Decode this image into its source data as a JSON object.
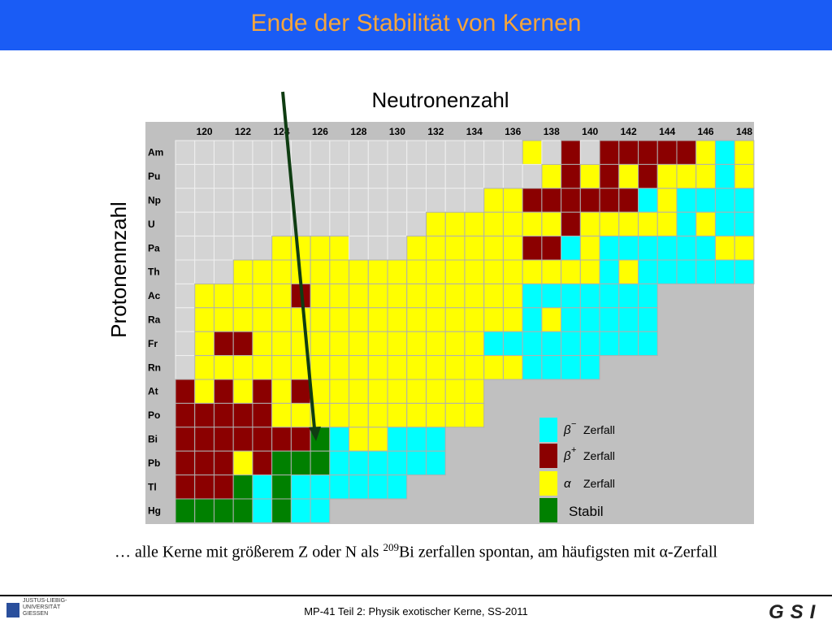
{
  "header": {
    "title": "Ende der Stabilität von Kernen"
  },
  "nuclide_chart": {
    "x_label": "Neutronenzahl",
    "y_label": "Protonennzahl",
    "neutron_labels": [
      120,
      122,
      124,
      126,
      128,
      130,
      132,
      134,
      136,
      138,
      140,
      142,
      144,
      146,
      148
    ],
    "proton_labels": [
      "Am",
      "Pu",
      "Np",
      "U",
      "Pa",
      "Th",
      "Ac",
      "Ra",
      "Fr",
      "Rn",
      "At",
      "Po",
      "Bi",
      "Pb",
      "Tl",
      "Hg"
    ],
    "legend": [
      {
        "symbol": "β",
        "sup": "−",
        "label": "Zerfall"
      },
      {
        "symbol": "β",
        "sup": "+",
        "label": "Zerfall"
      },
      {
        "symbol": "α",
        "label": "Zerfall"
      },
      {
        "label": "Stabil"
      }
    ]
  },
  "caption": {
    "before": "… alle Kerne mit größerem Z oder N als ",
    "sup": "209",
    "after": "Bi zerfallen spontan, am häufigsten mit α-Zerfall"
  },
  "footer": {
    "text": "MP-41 Teil 2: Physik exotischer Kerne, SS-2011",
    "logo_left": [
      "JUSTUS-LIEBIG-",
      "UNIVERSITÄT",
      "GIESSEN"
    ],
    "logo_right": "GSI"
  }
}
